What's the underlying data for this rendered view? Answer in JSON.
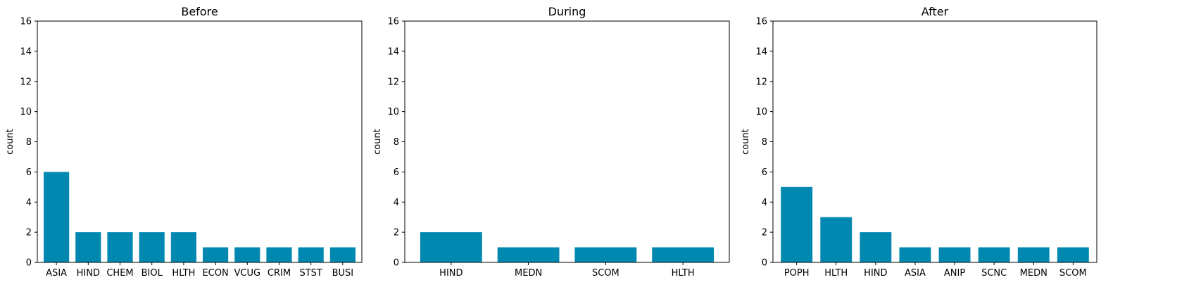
{
  "chart_data": [
    {
      "type": "bar",
      "title": "Before",
      "ylabel": "count",
      "xlabel": "",
      "ylim": [
        0,
        16
      ],
      "yticks": [
        0,
        2,
        4,
        6,
        8,
        10,
        12,
        14,
        16
      ],
      "categories": [
        "ASIA",
        "HIND",
        "CHEM",
        "BIOL",
        "HLTH",
        "ECON",
        "VCUG",
        "CRIM",
        "STST",
        "BUSI"
      ],
      "values": [
        6,
        2,
        2,
        2,
        2,
        1,
        1,
        1,
        1,
        1
      ],
      "bar_color": "#0088b0",
      "grid": false
    },
    {
      "type": "bar",
      "title": "During",
      "ylabel": "count",
      "xlabel": "",
      "ylim": [
        0,
        16
      ],
      "yticks": [
        0,
        2,
        4,
        6,
        8,
        10,
        12,
        14,
        16
      ],
      "categories": [
        "HIND",
        "MEDN",
        "SCOM",
        "HLTH"
      ],
      "values": [
        2,
        1,
        1,
        1
      ],
      "bar_color": "#0088b0",
      "grid": false
    },
    {
      "type": "bar",
      "title": "After",
      "ylabel": "count",
      "xlabel": "",
      "ylim": [
        0,
        16
      ],
      "yticks": [
        0,
        2,
        4,
        6,
        8,
        10,
        12,
        14,
        16
      ],
      "categories": [
        "POPH",
        "HLTH",
        "HIND",
        "ASIA",
        "ANIP",
        "SCNC",
        "MEDN",
        "SCOM"
      ],
      "values": [
        5,
        3,
        2,
        1,
        1,
        1,
        1,
        1
      ],
      "bar_color": "#0088b0",
      "grid": false
    }
  ]
}
